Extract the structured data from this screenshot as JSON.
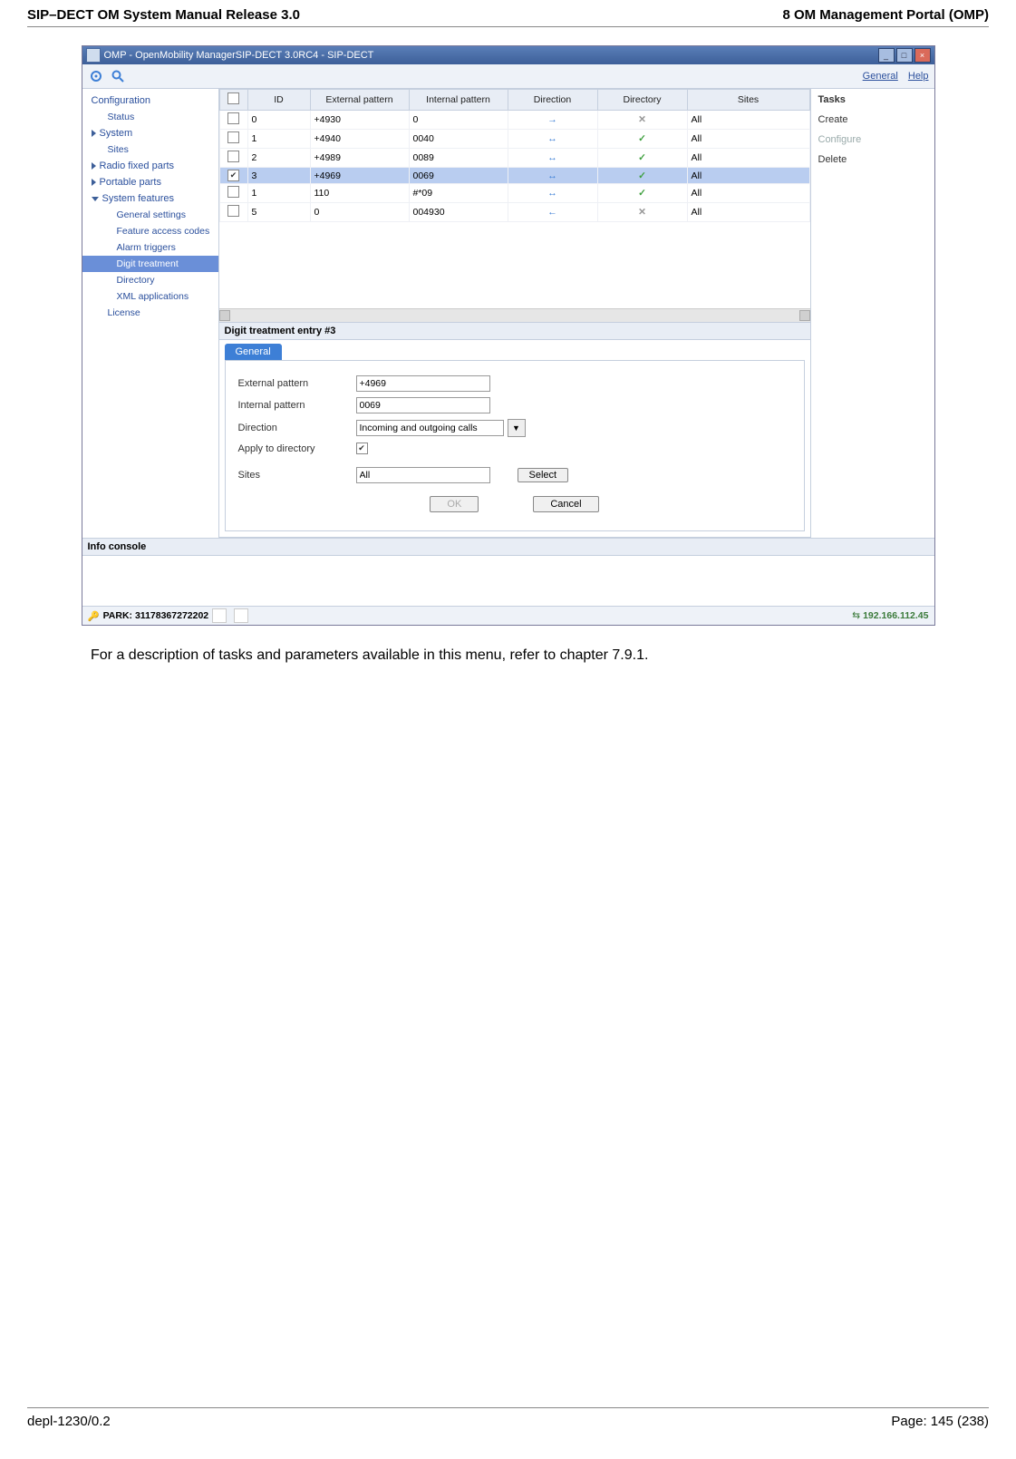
{
  "doc": {
    "header_left": "SIP–DECT OM System Manual Release 3.0",
    "header_right": "8 OM Management Portal (OMP)",
    "caption": "For a description of tasks and parameters available in this menu, refer to chapter 7.9.1.",
    "footer_left": "depl-1230/0.2",
    "footer_right": "Page: 145 (238)"
  },
  "window": {
    "title": "OMP - OpenMobility ManagerSIP-DECT 3.0RC4 - SIP-DECT",
    "toolbar_links": {
      "general": "General",
      "help": "Help"
    }
  },
  "sidebar": {
    "configuration": "Configuration",
    "status": "Status",
    "system": "System",
    "sites": "Sites",
    "radio_fixed_parts": "Radio fixed parts",
    "portable_parts": "Portable parts",
    "system_features": "System features",
    "general_settings": "General settings",
    "feature_access_codes": "Feature access codes",
    "alarm_triggers": "Alarm triggers",
    "digit_treatment": "Digit treatment",
    "directory": "Directory",
    "xml_applications": "XML applications",
    "license": "License"
  },
  "table": {
    "headers": {
      "id": "ID",
      "external": "External pattern",
      "internal": "Internal pattern",
      "direction": "Direction",
      "directory": "Directory",
      "sites": "Sites"
    },
    "rows": [
      {
        "checked": false,
        "id": "0",
        "external": "+4930",
        "internal": "0",
        "direction": "right",
        "directory": "x",
        "sites": "All"
      },
      {
        "checked": false,
        "id": "1",
        "external": "+4940",
        "internal": "0040",
        "direction": "both",
        "directory": "check",
        "sites": "All"
      },
      {
        "checked": false,
        "id": "2",
        "external": "+4989",
        "internal": "0089",
        "direction": "both",
        "directory": "check",
        "sites": "All"
      },
      {
        "checked": true,
        "id": "3",
        "external": "+4969",
        "internal": "0069",
        "direction": "both",
        "directory": "check",
        "sites": "All"
      },
      {
        "checked": false,
        "id": "1",
        "external": "110",
        "internal": "#*09",
        "direction": "both",
        "directory": "check",
        "sites": "All"
      },
      {
        "checked": false,
        "id": "5",
        "external": "0",
        "internal": "004930",
        "direction": "left",
        "directory": "x",
        "sites": "All"
      }
    ]
  },
  "form": {
    "title": "Digit treatment entry #3",
    "tab": "General",
    "fields": {
      "external_label": "External pattern",
      "external_value": "+4969",
      "internal_label": "Internal pattern",
      "internal_value": "0069",
      "direction_label": "Direction",
      "direction_value": "Incoming and outgoing calls",
      "apply_label": "Apply to directory",
      "apply_checked": true,
      "sites_label": "Sites",
      "sites_value": "All",
      "select_button": "Select"
    },
    "buttons": {
      "ok": "OK",
      "cancel": "Cancel"
    }
  },
  "tasks": {
    "header": "Tasks",
    "create": "Create",
    "configure": "Configure",
    "delete": "Delete"
  },
  "info_console": "Info console",
  "statusbar": {
    "park": "PARK: 31178367272202",
    "ip": "192.166.112.45"
  }
}
